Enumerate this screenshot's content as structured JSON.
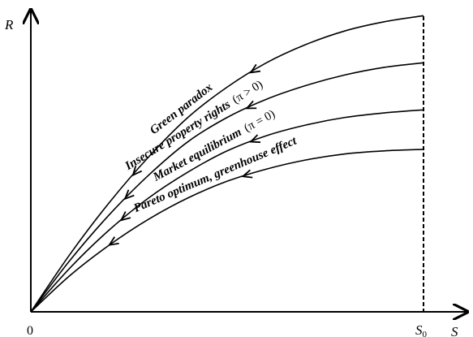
{
  "chart_data": {
    "type": "line",
    "title": "",
    "xlabel": "S",
    "ylabel": "R",
    "x_ticks": [
      {
        "x": 0,
        "label": "0"
      },
      {
        "x": 1,
        "label_main": "S",
        "label_sub": "0"
      }
    ],
    "xlim": [
      0,
      1.12
    ],
    "ylim": [
      0,
      1.0
    ],
    "grid": false,
    "legend": "none",
    "colors": {
      "line": "#000000",
      "background": "#ffffff"
    },
    "series": [
      {
        "name": "Green paradox",
        "label_main": "Green paradox",
        "label_pi": "",
        "x": [
          0,
          0.1,
          0.2,
          0.3,
          0.4,
          0.5,
          0.6,
          0.7,
          0.8,
          0.9,
          1.0
        ],
        "y": [
          0,
          0.19,
          0.36,
          0.51,
          0.64,
          0.74,
          0.82,
          0.88,
          0.925,
          0.955,
          0.975
        ]
      },
      {
        "name": "Insecure property rights (π > 0)",
        "label_main": "Insecure property rights",
        "label_pi": "(π > 0)",
        "x": [
          0,
          0.1,
          0.2,
          0.3,
          0.4,
          0.5,
          0.6,
          0.7,
          0.8,
          0.9,
          1.0
        ],
        "y": [
          0,
          0.17,
          0.32,
          0.45,
          0.56,
          0.64,
          0.7,
          0.745,
          0.78,
          0.805,
          0.82
        ]
      },
      {
        "name": "Market equilibrium (π = 0)",
        "label_main": "Market equilibrium",
        "label_pi": "(π = 0)",
        "x": [
          0,
          0.1,
          0.2,
          0.3,
          0.4,
          0.5,
          0.6,
          0.7,
          0.8,
          0.9,
          1.0
        ],
        "y": [
          0,
          0.145,
          0.27,
          0.375,
          0.46,
          0.53,
          0.58,
          0.615,
          0.64,
          0.655,
          0.665
        ]
      },
      {
        "name": "Pareto optimum, greenhouse effect",
        "label_main": "Pareto optimum, greenhouse effect",
        "label_pi": "",
        "x": [
          0,
          0.1,
          0.2,
          0.3,
          0.4,
          0.5,
          0.6,
          0.7,
          0.8,
          0.9,
          1.0
        ],
        "y": [
          0,
          0.12,
          0.22,
          0.305,
          0.375,
          0.43,
          0.47,
          0.5,
          0.52,
          0.53,
          0.535
        ]
      }
    ],
    "annotations": [
      "arrows point toward origin along each path",
      "vertical dashed line at S0"
    ]
  }
}
